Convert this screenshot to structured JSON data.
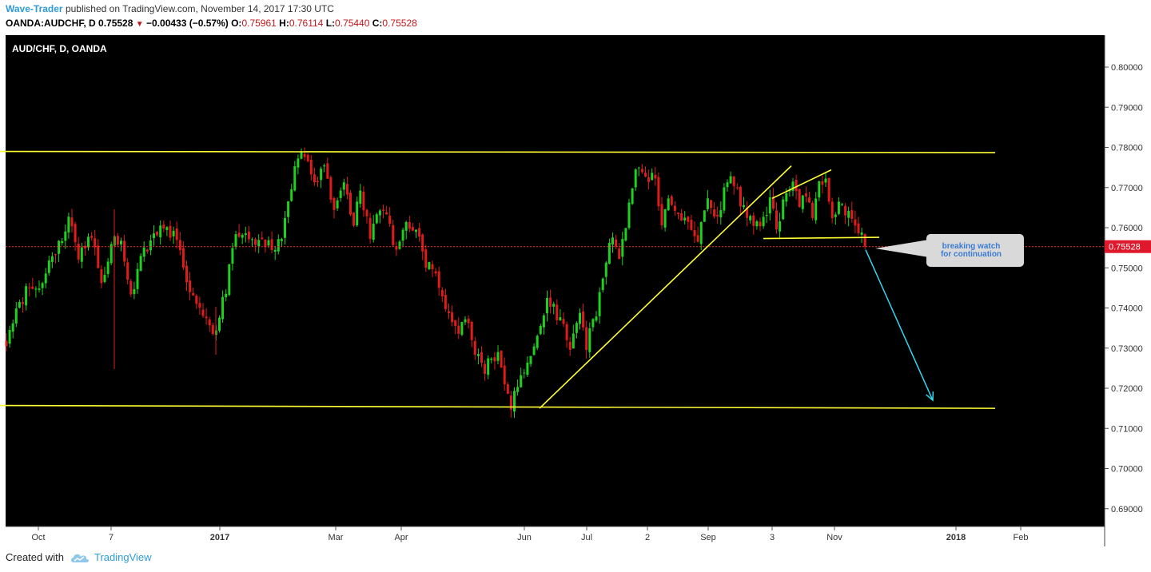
{
  "header": {
    "author": "Wave-Trader",
    "published_text": "published on TradingView.com, November 14, 2017 17:30 UTC",
    "symbol": "OANDA:AUDCHF, D",
    "last": "0.75528",
    "change": "−0.00433 (−0.57%)",
    "o_label": "O:",
    "o_value": "0.75961",
    "h_label": "H:",
    "h_value": "0.76114",
    "l_label": "L:",
    "l_value": "0.75440",
    "c_label": "C:",
    "c_value": "0.75528"
  },
  "footer": {
    "created_with": "Created with",
    "brand": "TradingView",
    "logo_icon": "tradingview-cloud-icon"
  },
  "chart_data": {
    "type": "candlestick",
    "title": "AUD/CHF, D, OANDA",
    "ylim": [
      0.6835,
      0.8065
    ],
    "y_ticks": [
      "0.80000",
      "0.79000",
      "0.78000",
      "0.77000",
      "0.76000",
      "0.75000",
      "0.74000",
      "0.73000",
      "0.72000",
      "0.71000",
      "0.70000",
      "0.69000"
    ],
    "x_ticks": [
      "Oct",
      "7",
      "2017",
      "Mar",
      "Apr",
      "Jun",
      "Jul",
      "2",
      "Sep",
      "3",
      "Nov",
      "2018",
      "Feb"
    ],
    "bold_x_ticks": [
      "2017",
      "2018"
    ],
    "current_price": "0.75528",
    "current_price_value": 0.75528,
    "annotation": "breaking watch\nfor continuation",
    "colors": {
      "background": "#000000",
      "up": "#1fd11f",
      "down": "#e01b1b",
      "trendline": "#ffff33",
      "arrow": "#33d6ee",
      "price_line": "#ff2a2a"
    },
    "path": [
      [
        0,
        0.729
      ],
      [
        2,
        0.737
      ],
      [
        6,
        0.744
      ],
      [
        10,
        0.745
      ],
      [
        15,
        0.754
      ],
      [
        19,
        0.762
      ],
      [
        22,
        0.753
      ],
      [
        26,
        0.758
      ],
      [
        29,
        0.746
      ],
      [
        32,
        0.756
      ],
      [
        35,
        0.758
      ],
      [
        38,
        0.742
      ],
      [
        41,
        0.752
      ],
      [
        45,
        0.759
      ],
      [
        48,
        0.76
      ],
      [
        52,
        0.758
      ],
      [
        56,
        0.744
      ],
      [
        61,
        0.738
      ],
      [
        63,
        0.733
      ],
      [
        67,
        0.745
      ],
      [
        70,
        0.758
      ],
      [
        73,
        0.76
      ],
      [
        76,
        0.755
      ],
      [
        80,
        0.757
      ],
      [
        82,
        0.753
      ],
      [
        85,
        0.761
      ],
      [
        88,
        0.775
      ],
      [
        91,
        0.779
      ],
      [
        94,
        0.771
      ],
      [
        97,
        0.775
      ],
      [
        100,
        0.764
      ],
      [
        103,
        0.77
      ],
      [
        106,
        0.762
      ],
      [
        108,
        0.77
      ],
      [
        111,
        0.757
      ],
      [
        113,
        0.763
      ],
      [
        116,
        0.763
      ],
      [
        119,
        0.754
      ],
      [
        122,
        0.761
      ],
      [
        125,
        0.76
      ],
      [
        128,
        0.751
      ],
      [
        131,
        0.748
      ],
      [
        135,
        0.738
      ],
      [
        138,
        0.733
      ],
      [
        140,
        0.738
      ],
      [
        143,
        0.728
      ],
      [
        146,
        0.725
      ],
      [
        150,
        0.729
      ],
      [
        152,
        0.721
      ],
      [
        154,
        0.716
      ],
      [
        157,
        0.723
      ],
      [
        160,
        0.729
      ],
      [
        162,
        0.732
      ],
      [
        165,
        0.741
      ],
      [
        167,
        0.74
      ],
      [
        170,
        0.735
      ],
      [
        172,
        0.73
      ],
      [
        175,
        0.738
      ],
      [
        177,
        0.731
      ],
      [
        180,
        0.739
      ],
      [
        182,
        0.748
      ],
      [
        185,
        0.759
      ],
      [
        187,
        0.751
      ],
      [
        189,
        0.761
      ],
      [
        192,
        0.776
      ],
      [
        195,
        0.773
      ],
      [
        198,
        0.772
      ],
      [
        200,
        0.76
      ],
      [
        202,
        0.766
      ],
      [
        205,
        0.764
      ],
      [
        208,
        0.762
      ],
      [
        211,
        0.758
      ],
      [
        214,
        0.766
      ],
      [
        217,
        0.762
      ],
      [
        219,
        0.769
      ],
      [
        221,
        0.773
      ],
      [
        224,
        0.766
      ],
      [
        227,
        0.762
      ],
      [
        230,
        0.759
      ],
      [
        233,
        0.767
      ],
      [
        235,
        0.76
      ],
      [
        238,
        0.769
      ],
      [
        240,
        0.771
      ],
      [
        242,
        0.766
      ],
      [
        244,
        0.768
      ],
      [
        246,
        0.763
      ],
      [
        248,
        0.77
      ],
      [
        250,
        0.771
      ],
      [
        252,
        0.763
      ],
      [
        254,
        0.765
      ],
      [
        256,
        0.764
      ],
      [
        258,
        0.762
      ],
      [
        260,
        0.76
      ],
      [
        262,
        0.7553
      ]
    ],
    "trendlines": [
      {
        "x": [
          0,
          1245
        ],
        "y": [
          0.779,
          0.7787
        ]
      },
      {
        "x": [
          0,
          1245
        ],
        "y": [
          0.7157,
          0.715
        ]
      },
      {
        "x": [
          675,
          990
        ],
        "y": [
          0.715,
          0.7754
        ]
      },
      {
        "x": [
          966,
          1040
        ],
        "y": [
          0.7673,
          0.7744
        ]
      },
      {
        "x": [
          955,
          1100
        ],
        "y": [
          0.7573,
          0.7576
        ]
      }
    ],
    "forecast_arrow": {
      "x": [
        1083,
        1167
      ],
      "y": [
        0.7545,
        0.717
      ]
    }
  }
}
